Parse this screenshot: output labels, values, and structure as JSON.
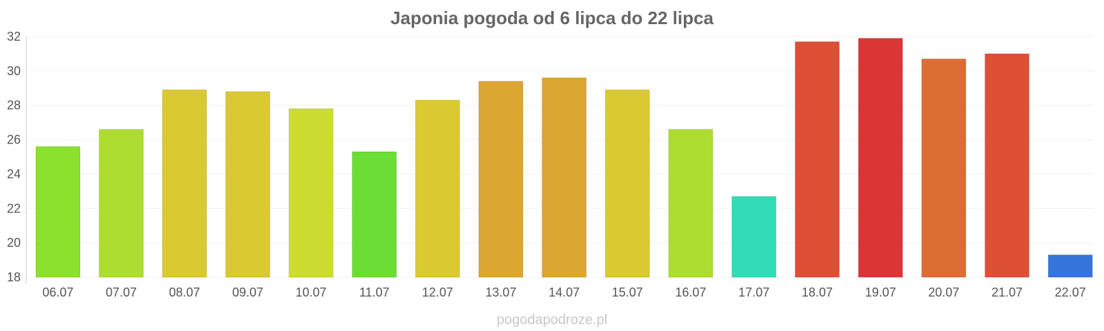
{
  "chart_data": {
    "type": "bar",
    "title": "Japonia pogoda od 6 lipca do 22 lipca",
    "xlabel": "",
    "ylabel": "",
    "ylim": [
      18,
      32
    ],
    "yticks": [
      18,
      20,
      22,
      24,
      26,
      28,
      30,
      32
    ],
    "grid": true,
    "categories": [
      "06.07",
      "07.07",
      "08.07",
      "09.07",
      "10.07",
      "11.07",
      "12.07",
      "13.07",
      "14.07",
      "15.07",
      "16.07",
      "17.07",
      "18.07",
      "19.07",
      "20.07",
      "21.07",
      "22.07"
    ],
    "values": [
      25.6,
      26.6,
      28.9,
      28.8,
      27.8,
      25.3,
      28.3,
      29.4,
      29.6,
      28.9,
      26.6,
      22.7,
      31.7,
      31.9,
      30.7,
      31.0,
      19.3
    ],
    "colors": [
      "#8ce02e",
      "#addd31",
      "#dbc931",
      "#dbc931",
      "#cddc31",
      "#6bdd35",
      "#dbc931",
      "#dba631",
      "#dba631",
      "#dbc931",
      "#addd31",
      "#34dbb8",
      "#dd5035",
      "#da3635",
      "#dc6e33",
      "#dd5035",
      "#3475db"
    ]
  },
  "watermark": "pogodapodroze.pl"
}
